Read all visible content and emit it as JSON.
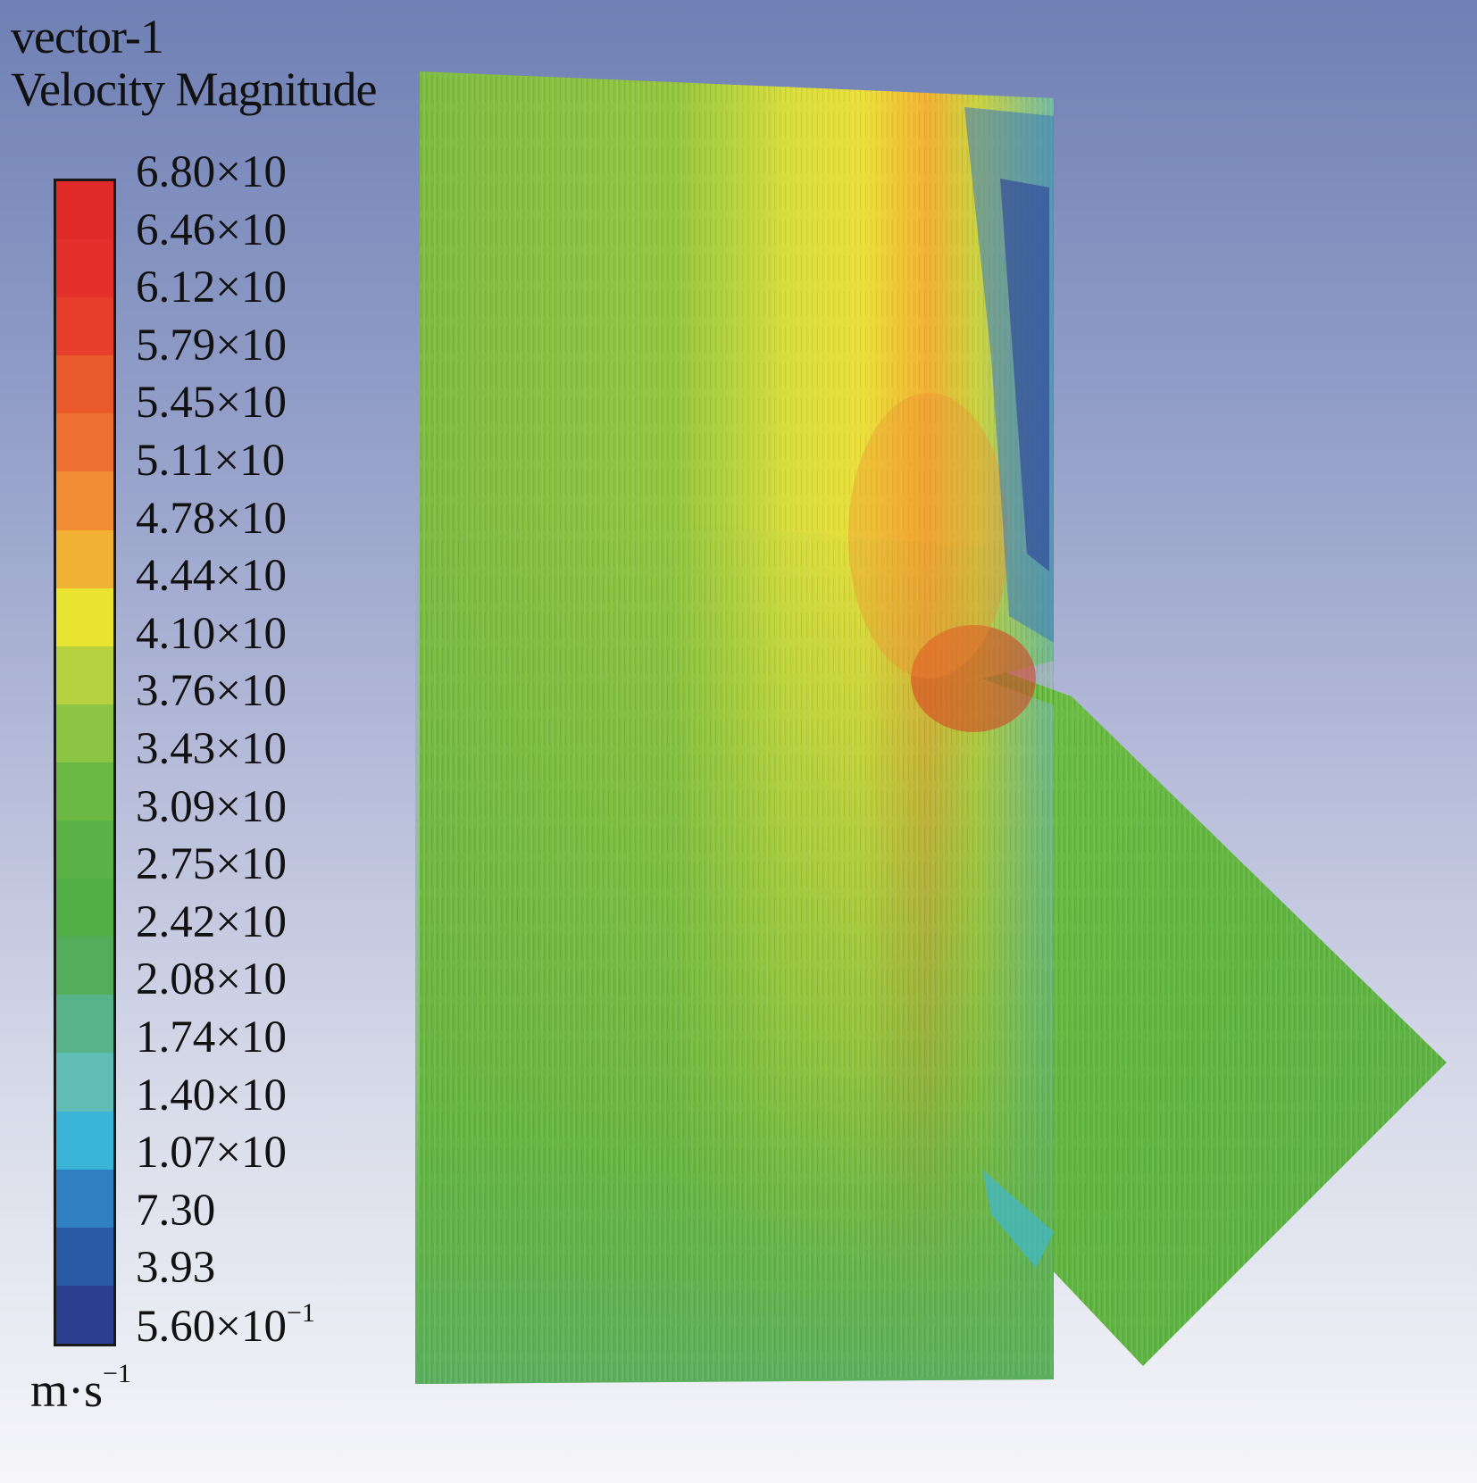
{
  "title": {
    "line1": "vector-1",
    "line2": "Velocity Magnitude"
  },
  "legend": {
    "labels": [
      {
        "base": "6.80×10",
        "sup": ""
      },
      {
        "base": "6.46×10",
        "sup": ""
      },
      {
        "base": "6.12×10",
        "sup": ""
      },
      {
        "base": "5.79×10",
        "sup": ""
      },
      {
        "base": "5.45×10",
        "sup": ""
      },
      {
        "base": "5.11×10",
        "sup": ""
      },
      {
        "base": "4.78×10",
        "sup": ""
      },
      {
        "base": "4.44×10",
        "sup": ""
      },
      {
        "base": "4.10×10",
        "sup": ""
      },
      {
        "base": "3.76×10",
        "sup": ""
      },
      {
        "base": "3.43×10",
        "sup": ""
      },
      {
        "base": "3.09×10",
        "sup": ""
      },
      {
        "base": "2.75×10",
        "sup": ""
      },
      {
        "base": "2.42×10",
        "sup": ""
      },
      {
        "base": "2.08×10",
        "sup": ""
      },
      {
        "base": "1.74×10",
        "sup": ""
      },
      {
        "base": "1.40×10",
        "sup": ""
      },
      {
        "base": "1.07×10",
        "sup": ""
      },
      {
        "base": "7.30",
        "sup": ""
      },
      {
        "base": "3.93",
        "sup": ""
      },
      {
        "base": "5.60×10",
        "sup": "−1"
      }
    ],
    "band_colors": [
      "#e02a28",
      "#e4302a",
      "#e73e2b",
      "#ea5a2d",
      "#ee7030",
      "#f28c32",
      "#f1b233",
      "#eae433",
      "#b7d23e",
      "#8cc444",
      "#6cb845",
      "#5bb247",
      "#52ae47",
      "#54ad5a",
      "#59b38a",
      "#5fbdb5",
      "#3ab5d8",
      "#2f80c0",
      "#2a5aa3",
      "#2c3f8e"
    ],
    "units": {
      "base": "m·s",
      "sup": "−1"
    }
  },
  "colors": {
    "green": "#5cb040",
    "yellow_green": "#9cc73e",
    "yellow": "#e8e23a",
    "orange": "#f0a030",
    "red": "#d83a20",
    "cyan": "#40b8d0",
    "blue": "#2c3f9a",
    "teal_green": "#5aae6a"
  }
}
